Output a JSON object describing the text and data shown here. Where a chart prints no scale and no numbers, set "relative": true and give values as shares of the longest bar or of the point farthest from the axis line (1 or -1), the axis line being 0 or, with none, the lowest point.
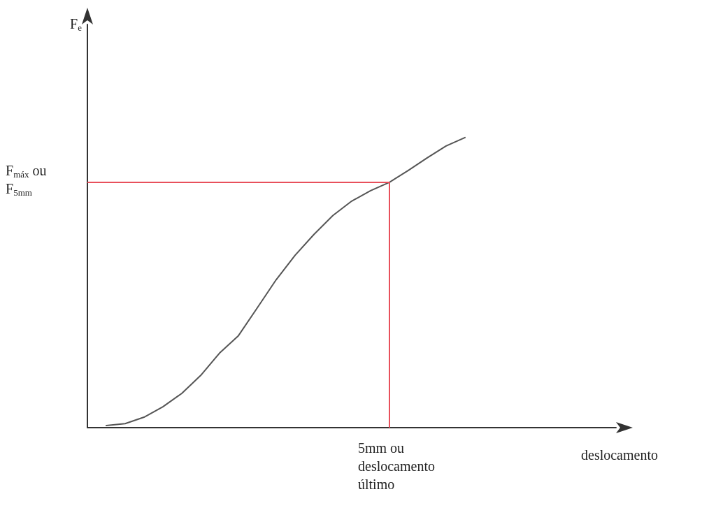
{
  "chart_data": {
    "type": "line",
    "relative": true,
    "xlabel": "deslocamento",
    "marker": "none",
    "line_style": "solid",
    "categories": [
      null,
      null,
      null,
      null,
      null,
      null,
      null,
      null,
      null,
      null,
      null,
      null,
      null,
      null,
      null,
      null,
      null,
      null,
      null,
      null,
      null,
      null,
      null,
      null,
      null,
      null,
      null,
      null,
      null
    ],
    "series": [
      {
        "color": "#555555",
        "values": [
          null,
          0.007,
          0.014,
          0.036,
          0.072,
          0.118,
          0.18,
          0.257,
          0.317,
          0.413,
          0.51,
          0.594,
          0.666,
          0.731,
          0.781,
          0.817,
          0.846,
          0.887,
          0.93,
          0.971,
          1,
          null,
          null,
          null,
          null,
          null,
          null,
          null,
          null
        ]
      }
    ],
    "ref_lines": [
      {
        "axis": "y",
        "value": 0.846,
        "label": "F$_{máx}$ ou F$_{5mm}$",
        "color": "#e8505b"
      }
    ],
    "annotations": [
      "F$_{e}$",
      "5mm ou deslocamento último"
    ]
  }
}
